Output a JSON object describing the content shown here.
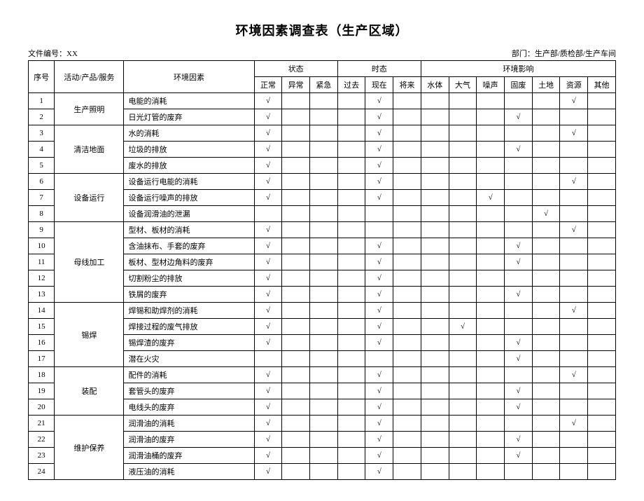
{
  "title": "环境因素调查表（生产区域）",
  "meta": {
    "file_no_label": "文件编号：XX",
    "dept_label": "部门：生产部/质检部/生产车间"
  },
  "headers": {
    "seq": "序号",
    "activity": "活动/产品/服务",
    "factor": "环境因素",
    "state_group": "状态",
    "state": [
      "正常",
      "异常",
      "紧急"
    ],
    "tense_group": "时态",
    "tense": [
      "过去",
      "现在",
      "将来"
    ],
    "impact_group": "环境影响",
    "impact": [
      "水体",
      "大气",
      "噪声",
      "固废",
      "土地",
      "资源",
      "其他"
    ]
  },
  "check": "√",
  "groups": [
    {
      "activity": "生产照明",
      "rows": [
        {
          "seq": "1",
          "factor": "电能的消耗",
          "state": [
            1,
            0,
            0
          ],
          "tense": [
            0,
            1,
            0
          ],
          "impact": [
            0,
            0,
            0,
            0,
            0,
            1,
            0
          ]
        },
        {
          "seq": "2",
          "factor": "日光灯管的废弃",
          "state": [
            1,
            0,
            0
          ],
          "tense": [
            0,
            1,
            0
          ],
          "impact": [
            0,
            0,
            0,
            1,
            0,
            0,
            0
          ]
        }
      ]
    },
    {
      "activity": "清洁地面",
      "rows": [
        {
          "seq": "3",
          "factor": "水的消耗",
          "state": [
            1,
            0,
            0
          ],
          "tense": [
            0,
            1,
            0
          ],
          "impact": [
            0,
            0,
            0,
            0,
            0,
            1,
            0
          ]
        },
        {
          "seq": "4",
          "factor": "垃圾的排放",
          "state": [
            1,
            0,
            0
          ],
          "tense": [
            0,
            1,
            0
          ],
          "impact": [
            0,
            0,
            0,
            1,
            0,
            0,
            0
          ]
        },
        {
          "seq": "5",
          "factor": "废水的排放",
          "state": [
            1,
            0,
            0
          ],
          "tense": [
            0,
            1,
            0
          ],
          "impact": [
            0,
            0,
            0,
            0,
            0,
            0,
            0
          ]
        }
      ]
    },
    {
      "activity": "设备运行",
      "rows": [
        {
          "seq": "6",
          "factor": "设备运行电能的消耗",
          "state": [
            1,
            0,
            0
          ],
          "tense": [
            0,
            1,
            0
          ],
          "impact": [
            0,
            0,
            0,
            0,
            0,
            1,
            0
          ]
        },
        {
          "seq": "7",
          "factor": "设备运行噪声的排放",
          "state": [
            1,
            0,
            0
          ],
          "tense": [
            0,
            1,
            0
          ],
          "impact": [
            0,
            0,
            1,
            0,
            0,
            0,
            0
          ]
        },
        {
          "seq": "8",
          "factor": "设备润滑油的泄漏",
          "state": [
            0,
            0,
            0
          ],
          "tense": [
            0,
            0,
            0
          ],
          "impact": [
            0,
            0,
            0,
            0,
            1,
            0,
            0
          ]
        }
      ]
    },
    {
      "activity": "母线加工",
      "rows": [
        {
          "seq": "9",
          "factor": "型材、板材的消耗",
          "state": [
            1,
            0,
            0
          ],
          "tense": [
            0,
            0,
            0
          ],
          "impact": [
            0,
            0,
            0,
            0,
            0,
            1,
            0
          ]
        },
        {
          "seq": "10",
          "factor": "含油抹布、手套的废弃",
          "state": [
            1,
            0,
            0
          ],
          "tense": [
            0,
            1,
            0
          ],
          "impact": [
            0,
            0,
            0,
            1,
            0,
            0,
            0
          ]
        },
        {
          "seq": "11",
          "factor": "板材、型材边角料的废弃",
          "state": [
            1,
            0,
            0
          ],
          "tense": [
            0,
            1,
            0
          ],
          "impact": [
            0,
            0,
            0,
            1,
            0,
            0,
            0
          ]
        },
        {
          "seq": "12",
          "factor": "切割粉尘的排放",
          "state": [
            1,
            0,
            0
          ],
          "tense": [
            0,
            1,
            0
          ],
          "impact": [
            0,
            0,
            0,
            0,
            0,
            0,
            0
          ]
        },
        {
          "seq": "13",
          "factor": "铁屑的废弃",
          "state": [
            1,
            0,
            0
          ],
          "tense": [
            0,
            1,
            0
          ],
          "impact": [
            0,
            0,
            0,
            1,
            0,
            0,
            0
          ]
        }
      ]
    },
    {
      "activity": "锡焊",
      "rows": [
        {
          "seq": "14",
          "factor": "焊锡和助焊剂的消耗",
          "state": [
            1,
            0,
            0
          ],
          "tense": [
            0,
            1,
            0
          ],
          "impact": [
            0,
            0,
            0,
            0,
            0,
            1,
            0
          ]
        },
        {
          "seq": "15",
          "factor": "焊接过程的废气排放",
          "state": [
            1,
            0,
            0
          ],
          "tense": [
            0,
            1,
            0
          ],
          "impact": [
            0,
            1,
            0,
            0,
            0,
            0,
            0
          ]
        },
        {
          "seq": "16",
          "factor": "锡焊渣的废弃",
          "state": [
            1,
            0,
            0
          ],
          "tense": [
            0,
            1,
            0
          ],
          "impact": [
            0,
            0,
            0,
            1,
            0,
            0,
            0
          ]
        },
        {
          "seq": "17",
          "factor": "潜在火灾",
          "state": [
            0,
            0,
            0
          ],
          "tense": [
            0,
            0,
            0
          ],
          "impact": [
            0,
            0,
            0,
            1,
            0,
            0,
            0
          ]
        }
      ]
    },
    {
      "activity": "装配",
      "rows": [
        {
          "seq": "18",
          "factor": "配件的消耗",
          "state": [
            1,
            0,
            0
          ],
          "tense": [
            0,
            1,
            0
          ],
          "impact": [
            0,
            0,
            0,
            0,
            0,
            1,
            0
          ]
        },
        {
          "seq": "19",
          "factor": "套管头的废弃",
          "state": [
            1,
            0,
            0
          ],
          "tense": [
            0,
            1,
            0
          ],
          "impact": [
            0,
            0,
            0,
            1,
            0,
            0,
            0
          ]
        },
        {
          "seq": "20",
          "factor": "电线头的废弃",
          "state": [
            1,
            0,
            0
          ],
          "tense": [
            0,
            1,
            0
          ],
          "impact": [
            0,
            0,
            0,
            1,
            0,
            0,
            0
          ]
        }
      ]
    },
    {
      "activity": "维护保养",
      "rows": [
        {
          "seq": "21",
          "factor": "润滑油的消耗",
          "state": [
            1,
            0,
            0
          ],
          "tense": [
            0,
            1,
            0
          ],
          "impact": [
            0,
            0,
            0,
            0,
            0,
            1,
            0
          ]
        },
        {
          "seq": "22",
          "factor": "润滑油的废弃",
          "state": [
            1,
            0,
            0
          ],
          "tense": [
            0,
            1,
            0
          ],
          "impact": [
            0,
            0,
            0,
            1,
            0,
            0,
            0
          ]
        },
        {
          "seq": "23",
          "factor": "润滑油桶的废弃",
          "state": [
            1,
            0,
            0
          ],
          "tense": [
            0,
            1,
            0
          ],
          "impact": [
            0,
            0,
            0,
            1,
            0,
            0,
            0
          ]
        },
        {
          "seq": "24",
          "factor": "液压油的消耗",
          "state": [
            1,
            0,
            0
          ],
          "tense": [
            0,
            1,
            0
          ],
          "impact": [
            0,
            0,
            0,
            0,
            0,
            0,
            0
          ]
        }
      ]
    }
  ]
}
